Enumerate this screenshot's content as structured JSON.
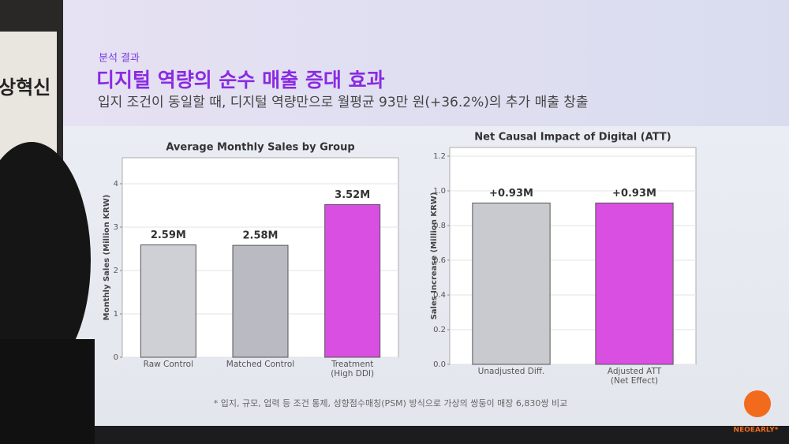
{
  "banner": {
    "text": "상혁신"
  },
  "header": {
    "label": "분석 결과",
    "title": "디지털 역량의 순수 매출 증대 효과",
    "subtitle": "입지 조건이 동일할 때, 디지털 역량만으로 월평균 93만 원(+36.2%)의 추가 매출 창출"
  },
  "chart_data": [
    {
      "type": "bar",
      "title": "Average Monthly Sales by Group",
      "y_label": "Monthly Sales (Million KRW)",
      "categories": [
        "Raw Control",
        "Matched Control",
        "Treatment\n(High DDI)"
      ],
      "values": [
        2.59,
        2.58,
        3.52
      ],
      "value_labels": [
        "2.59M",
        "2.58M",
        "3.52M"
      ],
      "colors": [
        "#cfd0d6",
        "#b9bac2",
        "#d84fe2"
      ],
      "ylim": [
        0,
        4.6
      ],
      "yticks": [
        0,
        1,
        2,
        3,
        4
      ],
      "grid": true
    },
    {
      "type": "bar",
      "title": "Net Causal Impact of Digital (ATT)",
      "y_label": "Sales Increase (Million KRW)",
      "categories": [
        "Unadjusted Diff.",
        "Adjusted ATT\n(Net Effect)"
      ],
      "values": [
        0.93,
        0.93
      ],
      "value_labels": [
        "+0.93M",
        "+0.93M"
      ],
      "colors": [
        "#c9cacf",
        "#d84fe2"
      ],
      "ylim": [
        0,
        1.25
      ],
      "yticks": [
        {
          "value": 0,
          "label": "0.0"
        },
        0.2,
        0.4,
        0.6,
        0.8,
        {
          "value": 1,
          "label": "1.0"
        },
        1.2
      ],
      "grid": true
    }
  ],
  "footnote": "* 입지, 규모, 업력 등 조건 통제, 성향점수매칭(PSM) 방식으로 가상의 쌍둥이 매장 6,830쌍 비교",
  "logo": "NEOEARLY*"
}
